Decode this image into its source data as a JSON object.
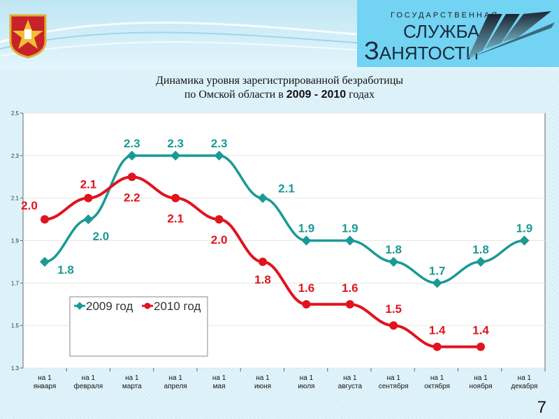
{
  "header": {
    "logo_line1": "ГОСУДАРСТВЕННАЯ",
    "logo_line2": "СЛУЖБА",
    "logo_line3_cap": "З",
    "logo_line3_rest": "АНЯТОСТИ"
  },
  "title": {
    "line1": "Динамика уровня зарегистрированной безработицы",
    "line2_prefix": "по Омской области в ",
    "line2_years": "2009 - 2010",
    "line2_suffix": " годах"
  },
  "page_number": "7",
  "chart_data": {
    "type": "line",
    "title": "Динамика уровня зарегистрированной безработицы по Омской области в 2009 - 2010 годах",
    "categories": [
      [
        "на 1",
        "января"
      ],
      [
        "на 1",
        "февраля"
      ],
      [
        "на 1",
        "марта"
      ],
      [
        "на 1",
        "апреля"
      ],
      [
        "на 1",
        "мая"
      ],
      [
        "на 1",
        "июня"
      ],
      [
        "на 1",
        "июля"
      ],
      [
        "на 1",
        "августа"
      ],
      [
        "на 1",
        "сентября"
      ],
      [
        "на 1",
        "октября"
      ],
      [
        "на 1",
        "ноября"
      ],
      [
        "на 1",
        "декабря"
      ]
    ],
    "ylim": [
      1.3,
      2.5
    ],
    "yticks": [
      "1.3",
      "1.5",
      "1.7",
      "1.9",
      "2.1",
      "2.3",
      "2.5"
    ],
    "legend": "inside-bottom-left",
    "series": [
      {
        "name": "2009 год",
        "color": "#1a9a96",
        "values": [
          1.8,
          2.0,
          2.3,
          2.3,
          2.3,
          2.1,
          1.9,
          1.9,
          1.8,
          1.7,
          1.8,
          1.9
        ],
        "labels": [
          "1.8",
          "2.0",
          "2.3",
          "2.3",
          "2.3",
          "2.1",
          "1.9",
          "1.9",
          "1.8",
          "1.7",
          "1.8",
          "1.9"
        ]
      },
      {
        "name": "2010 год",
        "color": "#e0141e",
        "values": [
          2.0,
          2.1,
          2.2,
          2.1,
          2.0,
          1.8,
          1.6,
          1.6,
          1.5,
          1.4,
          1.4,
          null
        ],
        "labels": [
          "2.0",
          "2.1",
          "2.2",
          "2.1",
          "2.0",
          "1.8",
          "1.6",
          "1.6",
          "1.5",
          "1.4",
          "1.4",
          null
        ]
      }
    ]
  }
}
